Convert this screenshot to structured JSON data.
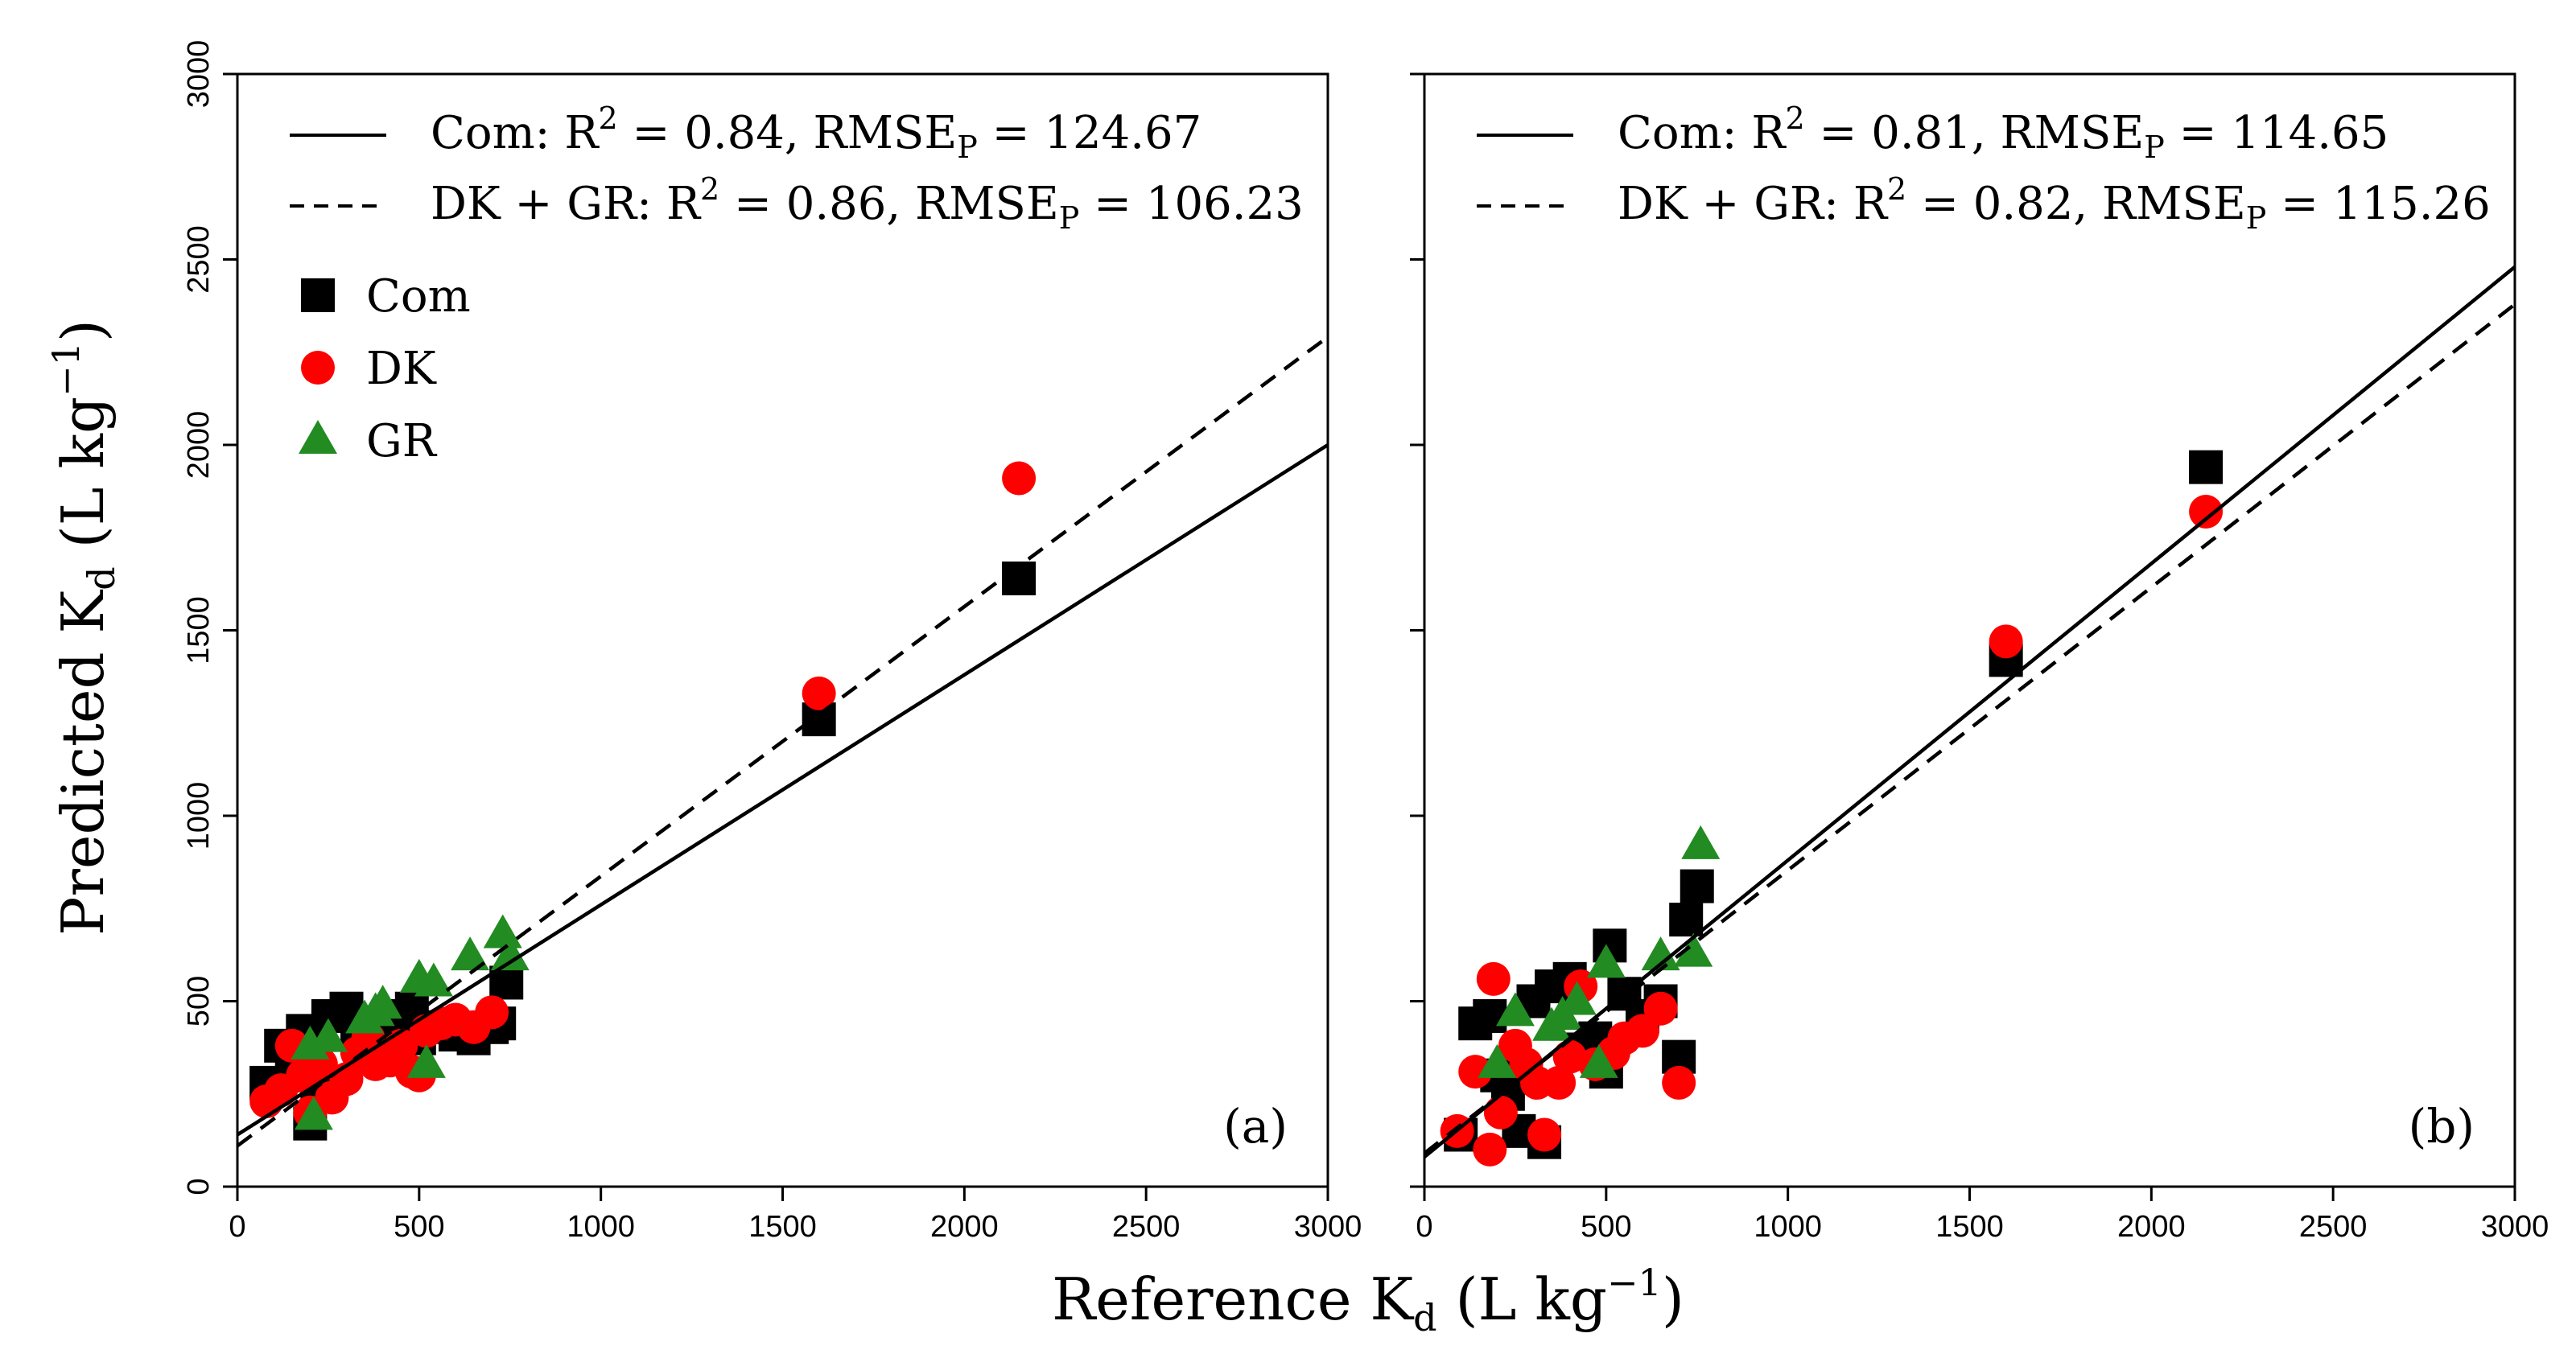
{
  "chart_data": [
    {
      "panel_label": "(a)",
      "type": "scatter",
      "xlim": [
        0,
        3000
      ],
      "ylim": [
        0,
        3000
      ],
      "xticks": [
        "0",
        "500",
        "1000",
        "1500",
        "2000",
        "2500",
        "3000"
      ],
      "yticks": [
        "0",
        "500",
        "1000",
        "1500",
        "2000",
        "2500",
        "3000"
      ],
      "fits": [
        {
          "name": "Com",
          "style": "solid",
          "intercept": 140,
          "slope": 0.62,
          "label_prefix": "Com: R",
          "sup": "2",
          "r2": "= 0.84, RMSE",
          "sub": "P",
          "rmse": "= 124.67"
        },
        {
          "name": "DK + GR",
          "style": "dashed",
          "intercept": 110,
          "slope": 0.727,
          "label_prefix": "DK + GR: R",
          "sup": "2",
          "r2": "= 0.86, RMSE",
          "sub": "P",
          "rmse": "= 106.23"
        }
      ],
      "series": [
        {
          "name": "Com",
          "marker": "square",
          "color": "#000000",
          "points": [
            [
              80,
              280
            ],
            [
              120,
              380
            ],
            [
              150,
              300
            ],
            [
              180,
              420
            ],
            [
              200,
              170
            ],
            [
              220,
              250
            ],
            [
              250,
              460
            ],
            [
              300,
              480
            ],
            [
              330,
              400
            ],
            [
              350,
              350
            ],
            [
              380,
              430
            ],
            [
              400,
              380
            ],
            [
              450,
              460
            ],
            [
              480,
              480
            ],
            [
              500,
              400
            ],
            [
              550,
              430
            ],
            [
              600,
              410
            ],
            [
              650,
              400
            ],
            [
              700,
              430
            ],
            [
              720,
              440
            ],
            [
              740,
              550
            ],
            [
              1600,
              1260
            ],
            [
              2150,
              1640
            ]
          ]
        },
        {
          "name": "DK",
          "marker": "circle",
          "color": "#ff0000",
          "points": [
            [
              80,
              230
            ],
            [
              120,
              260
            ],
            [
              150,
              380
            ],
            [
              180,
              300
            ],
            [
              200,
              200
            ],
            [
              230,
              330
            ],
            [
              260,
              240
            ],
            [
              300,
              290
            ],
            [
              330,
              360
            ],
            [
              360,
              400
            ],
            [
              380,
              330
            ],
            [
              420,
              340
            ],
            [
              450,
              380
            ],
            [
              480,
              310
            ],
            [
              500,
              300
            ],
            [
              520,
              420
            ],
            [
              560,
              440
            ],
            [
              600,
              450
            ],
            [
              650,
              430
            ],
            [
              700,
              470
            ],
            [
              1600,
              1330
            ],
            [
              2150,
              1910
            ]
          ]
        },
        {
          "name": "GR",
          "marker": "triangle",
          "color": "#228b22",
          "points": [
            [
              200,
              380
            ],
            [
              210,
              190
            ],
            [
              250,
              400
            ],
            [
              350,
              450
            ],
            [
              380,
              470
            ],
            [
              400,
              490
            ],
            [
              500,
              560
            ],
            [
              520,
              330
            ],
            [
              540,
              550
            ],
            [
              640,
              620
            ],
            [
              730,
              680
            ],
            [
              750,
              620
            ]
          ]
        }
      ]
    },
    {
      "panel_label": "(b)",
      "type": "scatter",
      "xlim": [
        0,
        3000
      ],
      "ylim": [
        0,
        3000
      ],
      "xticks": [
        "0",
        "500",
        "1000",
        "1500",
        "2000",
        "2500",
        "3000"
      ],
      "yticks": [
        "0",
        "500",
        "1000",
        "1500",
        "2000",
        "2500",
        "3000"
      ],
      "fits": [
        {
          "name": "Com",
          "style": "solid",
          "intercept": 80,
          "slope": 0.8,
          "label_prefix": "Com: R",
          "sup": "2",
          "r2": "= 0.81, RMSE",
          "sub": "P",
          "rmse": "= 114.65"
        },
        {
          "name": "DK + GR",
          "style": "dashed",
          "intercept": 90,
          "slope": 0.763,
          "label_prefix": "DK + GR: R",
          "sup": "2",
          "r2": "= 0.82, RMSE",
          "sub": "P",
          "rmse": "= 115.26"
        }
      ],
      "series": [
        {
          "name": "Com",
          "marker": "square",
          "color": "#000000",
          "points": [
            [
              100,
              140
            ],
            [
              140,
              440
            ],
            [
              180,
              460
            ],
            [
              200,
              300
            ],
            [
              230,
              250
            ],
            [
              260,
              150
            ],
            [
              300,
              500
            ],
            [
              330,
              120
            ],
            [
              350,
              540
            ],
            [
              400,
              560
            ],
            [
              430,
              370
            ],
            [
              470,
              400
            ],
            [
              500,
              310
            ],
            [
              510,
              650
            ],
            [
              550,
              520
            ],
            [
              600,
              460
            ],
            [
              650,
              500
            ],
            [
              700,
              350
            ],
            [
              720,
              720
            ],
            [
              750,
              810
            ],
            [
              1600,
              1420
            ],
            [
              2150,
              1940
            ]
          ]
        },
        {
          "name": "DK",
          "marker": "circle",
          "color": "#ff0000",
          "points": [
            [
              90,
              150
            ],
            [
              140,
              310
            ],
            [
              180,
              100
            ],
            [
              190,
              560
            ],
            [
              210,
              200
            ],
            [
              250,
              380
            ],
            [
              280,
              330
            ],
            [
              310,
              280
            ],
            [
              330,
              140
            ],
            [
              370,
              280
            ],
            [
              400,
              350
            ],
            [
              430,
              540
            ],
            [
              470,
              330
            ],
            [
              520,
              360
            ],
            [
              550,
              400
            ],
            [
              600,
              420
            ],
            [
              650,
              480
            ],
            [
              700,
              280
            ],
            [
              1600,
              1470
            ],
            [
              2150,
              1820
            ]
          ]
        },
        {
          "name": "GR",
          "marker": "triangle",
          "color": "#228b22",
          "points": [
            [
              200,
              330
            ],
            [
              250,
              470
            ],
            [
              350,
              430
            ],
            [
              380,
              460
            ],
            [
              420,
              500
            ],
            [
              480,
              330
            ],
            [
              500,
              600
            ],
            [
              650,
              620
            ],
            [
              740,
              630
            ],
            [
              760,
              920
            ]
          ]
        }
      ]
    }
  ],
  "legend": [
    {
      "name": "Com",
      "label": "Com"
    },
    {
      "name": "DK",
      "label": "DK"
    },
    {
      "name": "GR",
      "label": "GR"
    }
  ],
  "axes": {
    "y_title_main": "Predicted K",
    "y_title_sub": "d",
    "y_title_unit": " (L kg",
    "y_title_sup": "−1",
    "y_title_close": ")",
    "x_title_main": "Reference K",
    "x_title_sub": "d",
    "x_title_unit": " (L kg",
    "x_title_sup": "−1",
    "x_title_close": ")"
  }
}
